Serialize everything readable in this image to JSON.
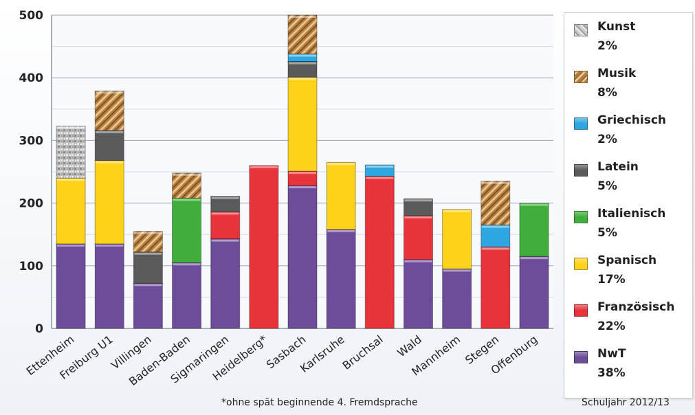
{
  "chart_data": {
    "type": "bar",
    "stacked": true,
    "ylim": [
      0,
      500
    ],
    "yticks": [
      0,
      100,
      200,
      300,
      400,
      500
    ],
    "grid": true,
    "legend_position": "right",
    "categories": [
      "Ettenheim",
      "Freiburg U1",
      "Villingen",
      "Baden-Baden",
      "Sigmaringen",
      "Heidelberg*",
      "Sasbach",
      "Karlsruhe",
      "Bruchsal",
      "Wald",
      "Mannheim",
      "Stegen",
      "Offenburg"
    ],
    "series": [
      {
        "name": "NwT",
        "share": "38%",
        "color": "#6d4c9a",
        "values": [
          135,
          135,
          72,
          105,
          143,
          0,
          228,
          158,
          0,
          110,
          95,
          0,
          115
        ]
      },
      {
        "name": "Französisch",
        "share": "22%",
        "color": "#e8333a",
        "values": [
          0,
          0,
          0,
          0,
          43,
          260,
          23,
          0,
          243,
          70,
          0,
          130,
          0
        ]
      },
      {
        "name": "Spanisch",
        "share": "17%",
        "color": "#ffd21a",
        "values": [
          105,
          133,
          0,
          0,
          0,
          0,
          150,
          107,
          0,
          0,
          95,
          0,
          0
        ]
      },
      {
        "name": "Italienisch",
        "share": "5%",
        "color": "#3fae3a",
        "values": [
          0,
          0,
          0,
          103,
          0,
          0,
          0,
          0,
          0,
          0,
          0,
          0,
          85
        ]
      },
      {
        "name": "Latein",
        "share": "5%",
        "color": "#5a5a5a",
        "values": [
          0,
          48,
          50,
          0,
          25,
          0,
          25,
          0,
          0,
          27,
          0,
          0,
          0
        ]
      },
      {
        "name": "Griechisch",
        "share": "2%",
        "color": "#2ea6e0",
        "values": [
          0,
          0,
          0,
          0,
          0,
          0,
          12,
          0,
          18,
          0,
          0,
          35,
          0
        ]
      },
      {
        "name": "Musik",
        "share": "8%",
        "color": "#b07a3a",
        "values": [
          0,
          63,
          33,
          40,
          0,
          0,
          62,
          0,
          0,
          0,
          0,
          70,
          0
        ]
      },
      {
        "name": "Kunst",
        "share": "2%",
        "color": "#b9b9b9",
        "values": [
          83,
          0,
          0,
          0,
          0,
          0,
          0,
          0,
          0,
          0,
          0,
          0,
          0
        ]
      }
    ],
    "legend_order": [
      "Kunst",
      "Musik",
      "Griechisch",
      "Latein",
      "Italienisch",
      "Spanisch",
      "Französisch",
      "NwT"
    ]
  },
  "footnote": "*ohne spät beginnende 4. Fremdsprache",
  "school_year": "Schuljahr 2012/13"
}
